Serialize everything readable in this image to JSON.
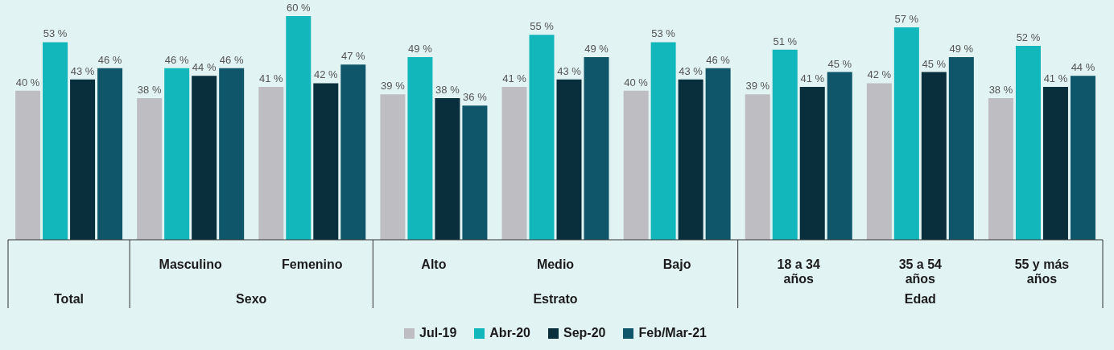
{
  "chart_data": {
    "type": "bar",
    "categories": [
      null,
      "Masculino",
      "Femenino",
      "Alto",
      "Medio",
      "Bajo",
      "18 a 34 años",
      "35 a 54 años",
      "55 y más años"
    ],
    "series": [
      {
        "name": "Jul-19",
        "color": "#bebec2",
        "values": [
          40,
          38,
          41,
          39,
          41,
          40,
          39,
          42,
          38
        ],
        "value_labels": [
          "40 %",
          "38 %",
          "41 %",
          "39 %",
          "41 %",
          "40 %",
          "39 %",
          "42 %",
          "38 %"
        ]
      },
      {
        "name": "Abr-20",
        "color": "#12b7bb",
        "values": [
          53,
          46,
          60,
          49,
          55,
          53,
          51,
          57,
          52
        ],
        "value_labels": [
          "53 %",
          "46 %",
          "60 %",
          "49 %",
          "55 %",
          "53 %",
          "51 %",
          "57 %",
          "52 %"
        ]
      },
      {
        "name": "Sep-20",
        "color": "#0a2f3c",
        "values": [
          43,
          44,
          42,
          38,
          43,
          43,
          41,
          45,
          41
        ],
        "value_labels": [
          "43 %",
          "44 %",
          "42 %",
          "38 %",
          "43 %",
          "43 %",
          "41 %",
          "45 %",
          "41 %"
        ]
      },
      {
        "name": "Feb/Mar-21",
        "color": "#0f566a",
        "values": [
          46,
          46,
          47,
          36,
          49,
          46,
          45,
          49,
          44
        ],
        "value_labels": [
          "46 %",
          "46 %",
          "47 %",
          "36 %",
          "49 %",
          "46 %",
          "45 %",
          "49 %",
          "44 %"
        ]
      }
    ],
    "annotations": [
      "Total",
      "Sexo",
      "Estrato",
      "Edad"
    ],
    "legend": "bottom",
    "grid": false
  }
}
